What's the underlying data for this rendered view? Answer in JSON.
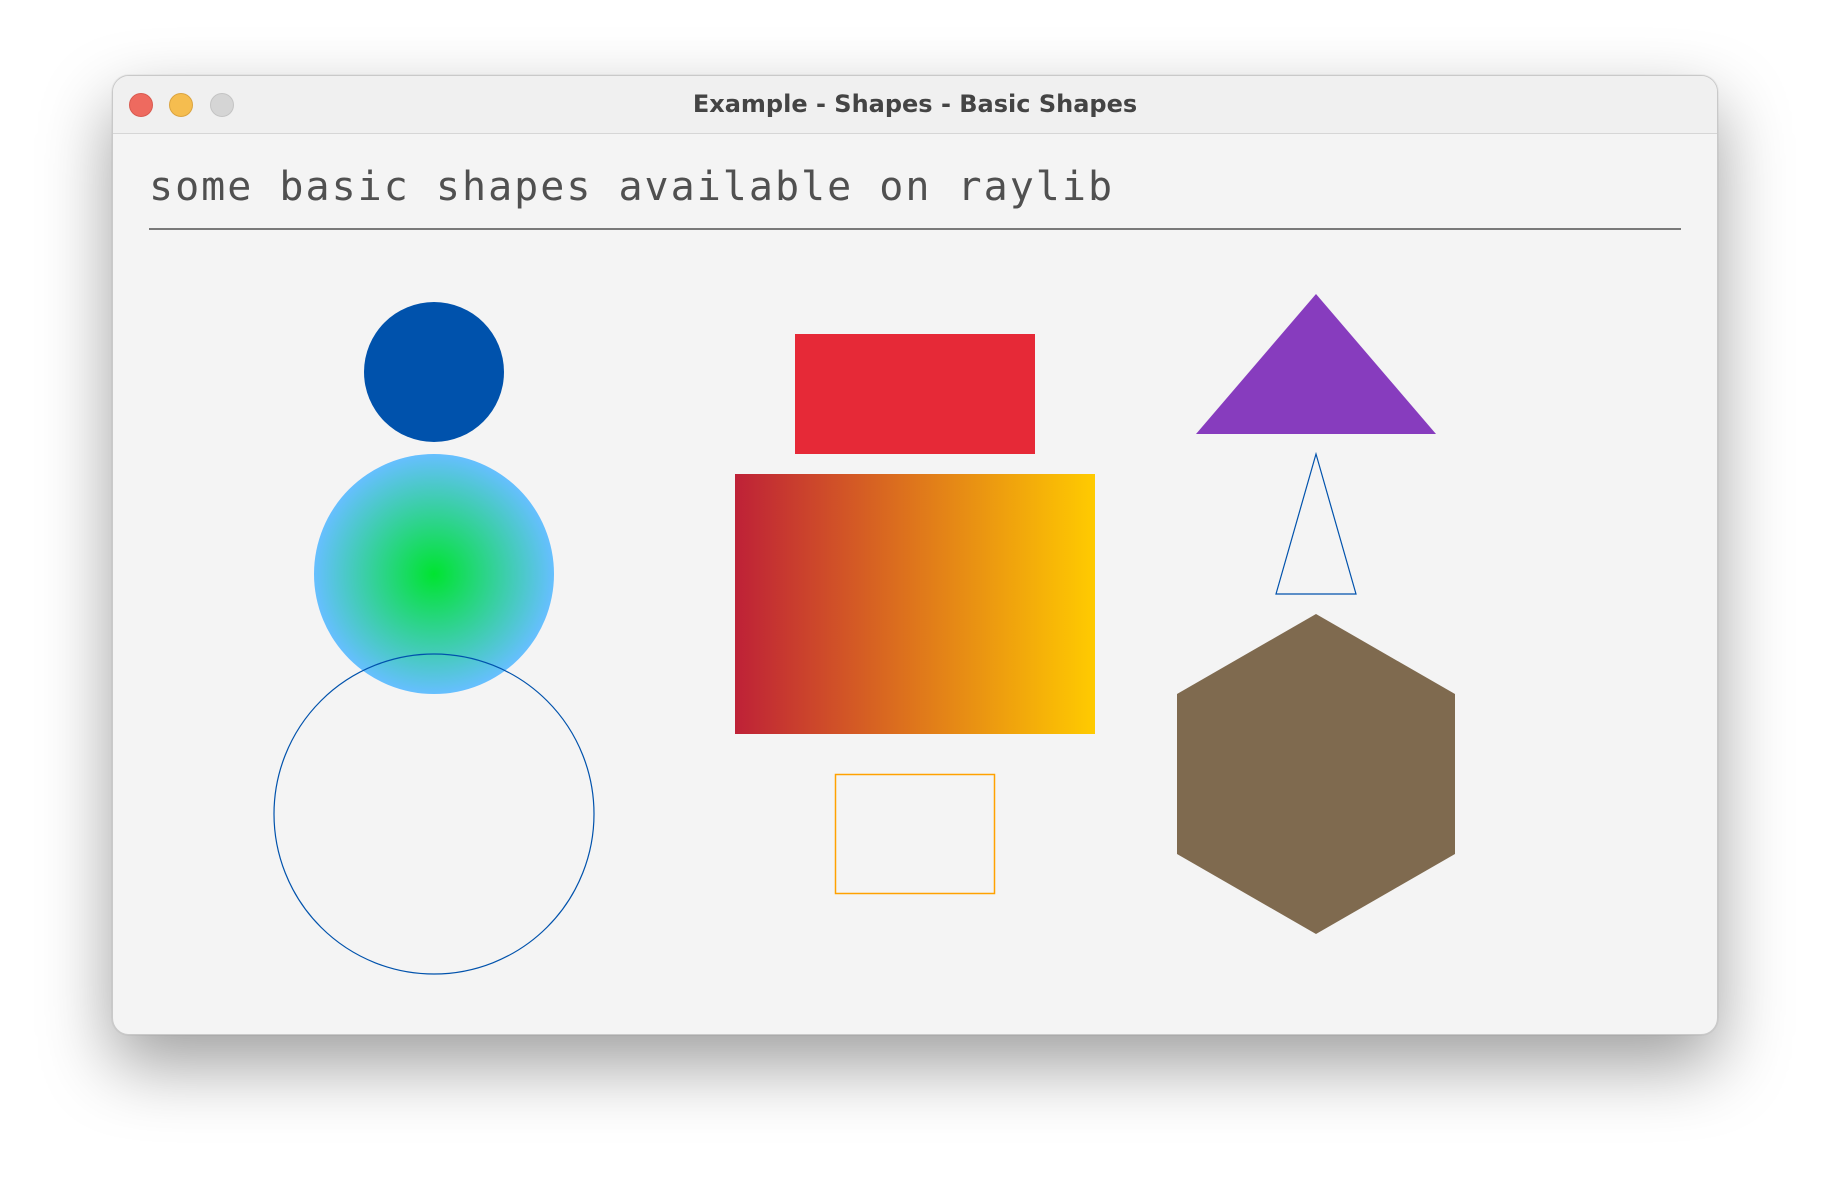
{
  "window": {
    "title": "Example - Shapes - Basic Shapes",
    "controls": [
      "close",
      "minimize",
      "maximize"
    ]
  },
  "content": {
    "heading": "some basic shapes available on raylib"
  },
  "colors": {
    "filled_circle": "#0052ac",
    "gradient_circle_inner": "#00e430",
    "gradient_circle_outer": "#66bfff",
    "circle_lines": "#0052ac",
    "filled_rectangle": "#e62937",
    "gradient_rectangle_left": "#be2137",
    "gradient_rectangle_right": "#ffcb00",
    "rectangle_lines": "#ffa100",
    "filled_triangle": "#873cbe",
    "triangle_lines": "#0052ac",
    "polygon": "#7f6a4f",
    "divider": "#505050"
  }
}
